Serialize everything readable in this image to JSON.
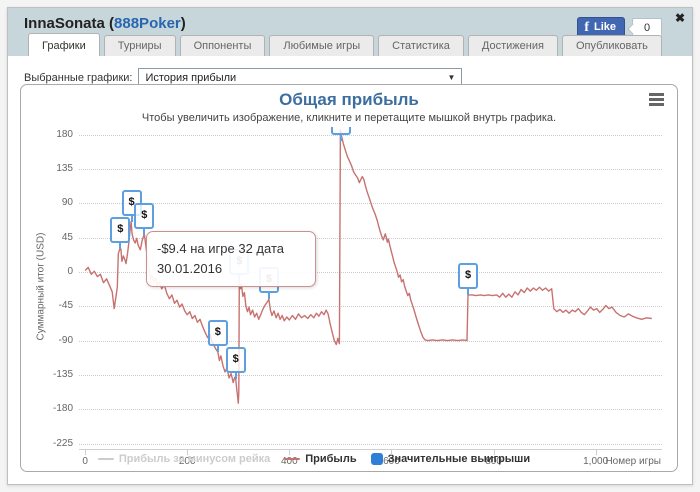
{
  "header": {
    "player_name": "InnaSonata",
    "paren_open": "(",
    "site_name": "888Poker",
    "paren_close": ")",
    "fb_like_label": "Like",
    "fb_like_count": "0",
    "close_icon": "✖"
  },
  "tabs": [
    {
      "label": "Графики",
      "active": true
    },
    {
      "label": "Турниры",
      "active": false
    },
    {
      "label": "Оппоненты",
      "active": false
    },
    {
      "label": "Любимые игры",
      "active": false
    },
    {
      "label": "Статистика",
      "active": false
    },
    {
      "label": "Достижения",
      "active": false
    },
    {
      "label": "Опубликовать",
      "active": false
    }
  ],
  "selector": {
    "label": "Выбранные графики:",
    "value": "История прибыли",
    "arrow": "▼"
  },
  "colors": {
    "header_bg": "#c6d6db",
    "title_blue": "#3c6e9f",
    "profit_line": "#c87270",
    "marker_border_blue": "#5e9fe0",
    "legend_win_blue": "#2f7ed8",
    "disabled_gray": "#cccccc",
    "fb_blue": "#4267b2"
  },
  "chart_data": {
    "type": "line",
    "title": "Общая прибыль",
    "subtitle": "Чтобы увеличить изображение, кликните и перетащите мышкой внутрь графика.",
    "xlabel": "Номер игры",
    "ylabel": "Суммарный итог (USD)",
    "xlim": [
      -12,
      1130
    ],
    "ylim": [
      -232,
      190
    ],
    "grid": "horizontal-dotted",
    "legend_position": "bottom",
    "x_ticks": [
      {
        "v": 0,
        "label": "0"
      },
      {
        "v": 200,
        "label": "200"
      },
      {
        "v": 400,
        "label": "400"
      },
      {
        "v": 600,
        "label": "600"
      },
      {
        "v": 800,
        "label": "800"
      },
      {
        "v": 1000,
        "label": "1,000"
      }
    ],
    "y_ticks": [
      180,
      135,
      90,
      45,
      0,
      -45,
      -90,
      -135,
      -180,
      -225
    ],
    "series": [
      {
        "name": "Прибыль за минусом рейка",
        "color": "#cccccc",
        "kind": "line",
        "visible": false,
        "points": []
      },
      {
        "name": "Прибыль",
        "color": "#c87270",
        "kind": "line",
        "visible": true,
        "points": [
          [
            0,
            2
          ],
          [
            6,
            6
          ],
          [
            12,
            -3
          ],
          [
            18,
            1
          ],
          [
            24,
            -6
          ],
          [
            30,
            -3
          ],
          [
            36,
            -14
          ],
          [
            42,
            -9
          ],
          [
            48,
            -18
          ],
          [
            53,
            -26
          ],
          [
            57,
            -48
          ],
          [
            60,
            -34
          ],
          [
            63,
            -20
          ],
          [
            65,
            24
          ],
          [
            68,
            30
          ],
          [
            70,
            30
          ],
          [
            72,
            14
          ],
          [
            75,
            21
          ],
          [
            78,
            16
          ],
          [
            80,
            11
          ],
          [
            83,
            24
          ],
          [
            86,
            40
          ],
          [
            88,
            55
          ],
          [
            90,
            66
          ],
          [
            92,
            50
          ],
          [
            95,
            42
          ],
          [
            98,
            38
          ],
          [
            101,
            44
          ],
          [
            104,
            35
          ],
          [
            108,
            29
          ],
          [
            112,
            42
          ],
          [
            116,
            50
          ],
          [
            119,
            34
          ],
          [
            122,
            18
          ],
          [
            125,
            4
          ],
          [
            128,
            -9
          ],
          [
            131,
            -4
          ],
          [
            134,
            -13
          ],
          [
            138,
            -8
          ],
          [
            142,
            -18
          ],
          [
            146,
            -13
          ],
          [
            150,
            -22
          ],
          [
            155,
            -17
          ],
          [
            160,
            -28
          ],
          [
            165,
            -35
          ],
          [
            170,
            -30
          ],
          [
            175,
            -41
          ],
          [
            180,
            -37
          ],
          [
            185,
            -46
          ],
          [
            190,
            -42
          ],
          [
            195,
            -51
          ],
          [
            200,
            -56
          ],
          [
            205,
            -52
          ],
          [
            210,
            -61
          ],
          [
            215,
            -57
          ],
          [
            220,
            -66
          ],
          [
            225,
            -62
          ],
          [
            230,
            -71
          ],
          [
            235,
            -79
          ],
          [
            240,
            -86
          ],
          [
            245,
            -82
          ],
          [
            248,
            -91
          ],
          [
            252,
            -96
          ],
          [
            256,
            -101
          ],
          [
            260,
            -105
          ],
          [
            263,
            -116
          ],
          [
            266,
            -110
          ],
          [
            270,
            -123
          ],
          [
            274,
            -131
          ],
          [
            278,
            -126
          ],
          [
            282,
            -139
          ],
          [
            286,
            -133
          ],
          [
            290,
            -145
          ],
          [
            293,
            -138
          ],
          [
            295,
            -140
          ],
          [
            297,
            -153
          ],
          [
            299,
            -166
          ],
          [
            300,
            -172
          ],
          [
            301,
            -158
          ],
          [
            302,
            -12
          ],
          [
            304,
            -22
          ],
          [
            306,
            -16
          ],
          [
            309,
            -32
          ],
          [
            312,
            -27
          ],
          [
            315,
            -45
          ],
          [
            318,
            -52
          ],
          [
            321,
            -46
          ],
          [
            324,
            -56
          ],
          [
            328,
            -50
          ],
          [
            332,
            -59
          ],
          [
            336,
            -54
          ],
          [
            340,
            -62
          ],
          [
            344,
            -56
          ],
          [
            348,
            -49
          ],
          [
            352,
            -44
          ],
          [
            356,
            -40
          ],
          [
            360,
            -36
          ],
          [
            363,
            -50
          ],
          [
            366,
            -57
          ],
          [
            370,
            -51
          ],
          [
            374,
            -60
          ],
          [
            378,
            -54
          ],
          [
            382,
            -62
          ],
          [
            386,
            -57
          ],
          [
            390,
            -64
          ],
          [
            395,
            -59
          ],
          [
            400,
            -63
          ],
          [
            406,
            -57
          ],
          [
            412,
            -62
          ],
          [
            418,
            -55
          ],
          [
            424,
            -60
          ],
          [
            430,
            -57
          ],
          [
            436,
            -61
          ],
          [
            442,
            -56
          ],
          [
            448,
            -60
          ],
          [
            453,
            -54
          ],
          [
            458,
            -58
          ],
          [
            463,
            -52
          ],
          [
            468,
            -56
          ],
          [
            472,
            -50
          ],
          [
            476,
            -55
          ],
          [
            480,
            -68
          ],
          [
            484,
            -79
          ],
          [
            488,
            -90
          ],
          [
            492,
            -95
          ],
          [
            495,
            -87
          ],
          [
            498,
            -94
          ],
          [
            500,
            186
          ],
          [
            503,
            176
          ],
          [
            506,
            168
          ],
          [
            510,
            159
          ],
          [
            514,
            151
          ],
          [
            518,
            145
          ],
          [
            522,
            139
          ],
          [
            526,
            131
          ],
          [
            530,
            127
          ],
          [
            534,
            123
          ],
          [
            537,
            117
          ],
          [
            540,
            121
          ],
          [
            543,
            125
          ],
          [
            546,
            121
          ],
          [
            549,
            113
          ],
          [
            552,
            106
          ],
          [
            556,
            98
          ],
          [
            560,
            90
          ],
          [
            564,
            82
          ],
          [
            568,
            76
          ],
          [
            572,
            68
          ],
          [
            575,
            60
          ],
          [
            578,
            53
          ],
          [
            581,
            47
          ],
          [
            584,
            42
          ],
          [
            586,
            46
          ],
          [
            588,
            50
          ],
          [
            590,
            45
          ],
          [
            592,
            39
          ],
          [
            594,
            43
          ],
          [
            596,
            37
          ],
          [
            599,
            29
          ],
          [
            602,
            21
          ],
          [
            605,
            13
          ],
          [
            608,
            7
          ],
          [
            611,
            1
          ],
          [
            614,
            -7
          ],
          [
            617,
            -4
          ],
          [
            620,
            -13
          ],
          [
            623,
            -10
          ],
          [
            626,
            -19
          ],
          [
            629,
            -25
          ],
          [
            632,
            -31
          ],
          [
            635,
            -28
          ],
          [
            638,
            -37
          ],
          [
            641,
            -43
          ],
          [
            644,
            -49
          ],
          [
            647,
            -56
          ],
          [
            650,
            -63
          ],
          [
            654,
            -71
          ],
          [
            658,
            -79
          ],
          [
            662,
            -86
          ],
          [
            666,
            -89
          ],
          [
            672,
            -90
          ],
          [
            680,
            -89
          ],
          [
            690,
            -90
          ],
          [
            700,
            -89
          ],
          [
            710,
            -90
          ],
          [
            720,
            -89
          ],
          [
            730,
            -90
          ],
          [
            740,
            -89
          ],
          [
            748,
            -90
          ],
          [
            750,
            -30
          ],
          [
            758,
            -30
          ],
          [
            766,
            -31
          ],
          [
            774,
            -30
          ],
          [
            782,
            -31
          ],
          [
            790,
            -30
          ],
          [
            798,
            -31
          ],
          [
            806,
            -30
          ],
          [
            812,
            -33
          ],
          [
            818,
            -28
          ],
          [
            824,
            -33
          ],
          [
            830,
            -29
          ],
          [
            836,
            -33
          ],
          [
            842,
            -26
          ],
          [
            848,
            -30
          ],
          [
            854,
            -23
          ],
          [
            860,
            -27
          ],
          [
            866,
            -21
          ],
          [
            872,
            -25
          ],
          [
            878,
            -21
          ],
          [
            884,
            -24
          ],
          [
            890,
            -20
          ],
          [
            896,
            -24
          ],
          [
            902,
            -21
          ],
          [
            908,
            -25
          ],
          [
            914,
            -22
          ],
          [
            918,
            -48
          ],
          [
            924,
            -52
          ],
          [
            930,
            -49
          ],
          [
            936,
            -53
          ],
          [
            942,
            -50
          ],
          [
            948,
            -54
          ],
          [
            954,
            -50
          ],
          [
            960,
            -52
          ],
          [
            966,
            -48
          ],
          [
            972,
            -53
          ],
          [
            978,
            -56
          ],
          [
            984,
            -51
          ],
          [
            990,
            -46
          ],
          [
            996,
            -50
          ],
          [
            1002,
            -48
          ],
          [
            1008,
            -53
          ],
          [
            1014,
            -49
          ],
          [
            1020,
            -44
          ],
          [
            1026,
            -48
          ],
          [
            1032,
            -46
          ],
          [
            1040,
            -53
          ],
          [
            1048,
            -57
          ],
          [
            1056,
            -59
          ],
          [
            1064,
            -55
          ],
          [
            1072,
            -58
          ],
          [
            1080,
            -60
          ],
          [
            1090,
            -62
          ],
          [
            1100,
            -60
          ],
          [
            1110,
            -61
          ]
        ]
      },
      {
        "name": "Значительные выигрыши",
        "color": "#2f7ed8",
        "kind": "marker",
        "glyph": "$",
        "visible": true,
        "points": [
          [
            69,
            30
          ],
          [
            91,
            65
          ],
          [
            116,
            48
          ],
          [
            260,
            -105
          ],
          [
            295,
            -140
          ],
          [
            302,
            -12
          ],
          [
            360,
            -36
          ],
          [
            502,
            172
          ],
          [
            750,
            -30
          ]
        ]
      }
    ],
    "tooltip": {
      "line1": "-$9.4 на игре 32 дата",
      "line2": "30.01.2016",
      "game": 32,
      "value_usd": -9.4,
      "date": "30.01.2016"
    }
  }
}
